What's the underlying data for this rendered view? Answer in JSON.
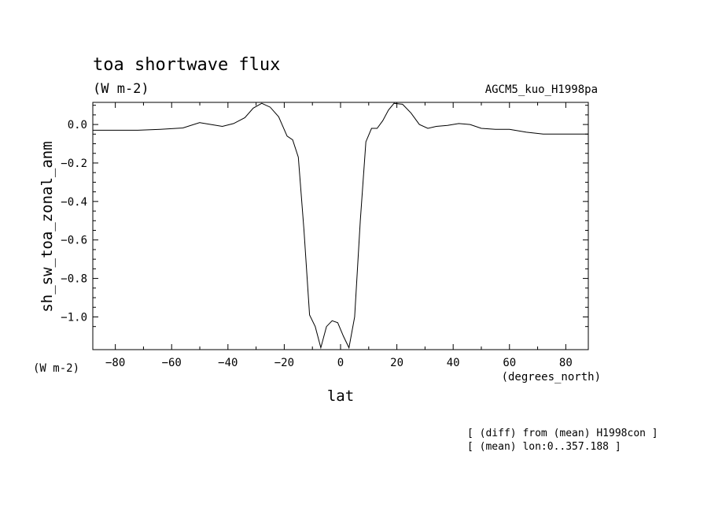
{
  "chart_data": {
    "type": "line",
    "title": "toa shortwave flux",
    "subtitle": "(W m-2)",
    "experiment": "AGCM5_kuo_H1998pa",
    "xlabel": "lat",
    "xunits": "(degrees_north)",
    "ylabel": "sh_sw_toa_zonal_anm",
    "yunits": "(W m-2)",
    "xlim": [
      -88,
      88
    ],
    "ylim": [
      -1.17,
      0.115
    ],
    "xticks": [
      -80,
      -60,
      -40,
      -20,
      0,
      20,
      40,
      60,
      80
    ],
    "yticks": [
      0.0,
      -0.2,
      -0.4,
      -0.6,
      -0.8,
      -1.0
    ],
    "xtick_labels": [
      "−80",
      "−60",
      "−40",
      "−20",
      "0",
      "20",
      "40",
      "60",
      "80"
    ],
    "ytick_labels": [
      "0.0",
      "−0.2",
      "−0.4",
      "−0.6",
      "−0.8",
      "−1.0"
    ],
    "grid": false,
    "series": [
      {
        "x": [
          -88,
          -80,
          -72,
          -64,
          -56,
          -50,
          -46,
          -42,
          -38,
          -34,
          -31,
          -28,
          -25,
          -22,
          -19,
          -17,
          -15,
          -13,
          -11,
          -9,
          -7,
          -5,
          -3,
          -1,
          1,
          3,
          5,
          7,
          9,
          11,
          13,
          15,
          17,
          19,
          22,
          25,
          28,
          31,
          34,
          38,
          42,
          46,
          50,
          55,
          60,
          66,
          72,
          78,
          84,
          88
        ],
        "values": [
          -0.03,
          -0.03,
          -0.03,
          -0.025,
          -0.018,
          0.01,
          0.0,
          -0.01,
          0.005,
          0.035,
          0.085,
          0.11,
          0.09,
          0.04,
          -0.06,
          -0.08,
          -0.17,
          -0.55,
          -0.99,
          -1.05,
          -1.16,
          -1.05,
          -1.02,
          -1.03,
          -1.1,
          -1.16,
          -1.0,
          -0.5,
          -0.09,
          -0.02,
          -0.02,
          0.02,
          0.075,
          0.11,
          0.105,
          0.06,
          0.0,
          -0.02,
          -0.01,
          -0.005,
          0.005,
          0.0,
          -0.02,
          -0.025,
          -0.025,
          -0.04,
          -0.05,
          -0.05,
          -0.05,
          -0.05
        ]
      }
    ]
  },
  "footer": {
    "diff_note": "[ (diff) from (mean) H1998con ]",
    "mean_note": "[ (mean) lon:0..357.188 ]"
  },
  "colors": {
    "line": "#000000",
    "axes": "#000000",
    "background": "#ffffff"
  }
}
